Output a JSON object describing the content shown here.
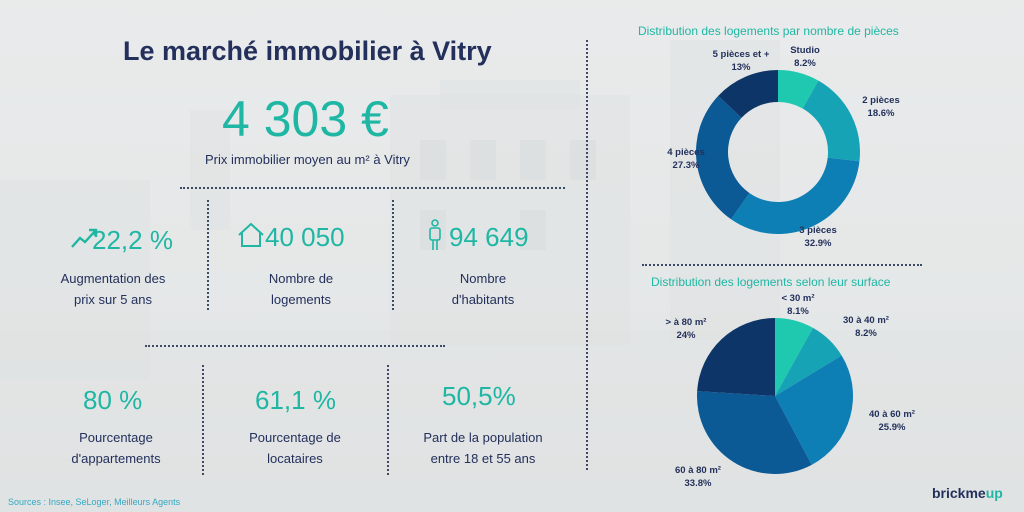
{
  "header": {
    "title": "Le marché immobilier à Vitry"
  },
  "price": {
    "value": "4 303 €",
    "caption": "Prix immobilier moyen au m² à Vitry"
  },
  "stats_top": [
    {
      "value": "22,2 %",
      "caption_line1": "Augmentation des",
      "caption_line2": "prix sur 5 ans",
      "icon": "trend-up-icon"
    },
    {
      "value": "40 050",
      "caption_line1": "Nombre de",
      "caption_line2": "logements",
      "icon": "house-icon"
    },
    {
      "value": "94 649",
      "caption_line1": "Nombre",
      "caption_line2": "d'habitants",
      "icon": "person-icon"
    }
  ],
  "stats_bottom": [
    {
      "value": "80 %",
      "caption_line1": "Pourcentage",
      "caption_line2": "d'appartements"
    },
    {
      "value": "61,1 %",
      "caption_line1": "Pourcentage de",
      "caption_line2": "locataires"
    },
    {
      "value": "50,5%",
      "caption_line1": "Part de la population",
      "caption_line2": "entre 18 et 55 ans"
    }
  ],
  "chart_data": [
    {
      "type": "pie",
      "variant": "donut",
      "title": "Distribution des logements par nombre de pièces",
      "categories": [
        "Studio",
        "2 pièces",
        "3 pièces",
        "4 pièces",
        "5 pièces et +"
      ],
      "values": [
        8.2,
        18.6,
        32.9,
        27.3,
        13
      ],
      "value_labels": [
        "8.2%",
        "18.6%",
        "32.9%",
        "27.3%",
        "13%"
      ],
      "colors": [
        "#1ec9b0",
        "#17a3b6",
        "#0d7fb5",
        "#0b5a95",
        "#0e3568"
      ]
    },
    {
      "type": "pie",
      "title": "Distribution des logements selon leur surface",
      "categories": [
        "< 30 m²",
        "30 à 40 m²",
        "40 à 60 m²",
        "60 à 80 m²",
        "> à 80 m²"
      ],
      "values": [
        8.1,
        8.2,
        25.9,
        33.8,
        24
      ],
      "value_labels": [
        "8.1%",
        "8.2%",
        "25.9%",
        "33.8%",
        "24%"
      ],
      "colors": [
        "#1ec9b0",
        "#17a3b6",
        "#0d7fb5",
        "#0b5a95",
        "#0e3568"
      ]
    }
  ],
  "footer": {
    "sources": "Sources : Insee, SeLoger, Meilleurs Agents",
    "logo_main": "brickme",
    "logo_accent": "up"
  }
}
